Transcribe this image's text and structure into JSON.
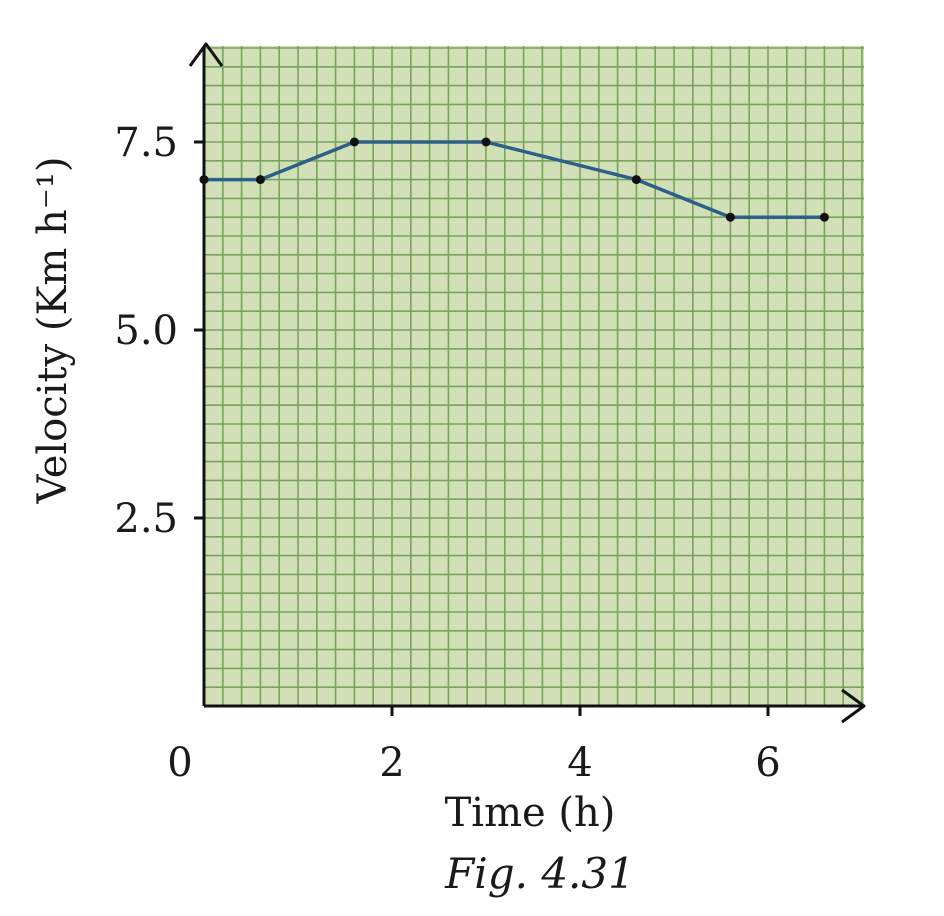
{
  "colors": {
    "grid_background": "#d2e0b8",
    "grid_line": "#7ba25c",
    "series_line": "#2c5f8a",
    "point_marker": "#111111",
    "axis": "#111111"
  },
  "chart_data": {
    "type": "line",
    "xlabel": "Time (h)",
    "ylabel": "Velocity (Km h⁻¹)",
    "xlim": [
      0,
      7
    ],
    "ylim": [
      0,
      8.8
    ],
    "x_ticks": [
      0,
      2,
      4,
      6
    ],
    "x_tick_labels": [
      "0",
      "2",
      "4",
      "6"
    ],
    "y_ticks": [
      2.5,
      5.0,
      7.5
    ],
    "y_tick_labels": [
      "2.5",
      "5.0",
      "7.5"
    ],
    "grid": true,
    "series": [
      {
        "x": [
          0.0,
          0.6,
          1.6,
          3.0,
          4.6,
          5.6,
          6.6
        ],
        "y": [
          7.0,
          7.0,
          7.5,
          7.5,
          7.0,
          6.5,
          6.5
        ]
      }
    ]
  },
  "caption": "Fig. 4.31"
}
